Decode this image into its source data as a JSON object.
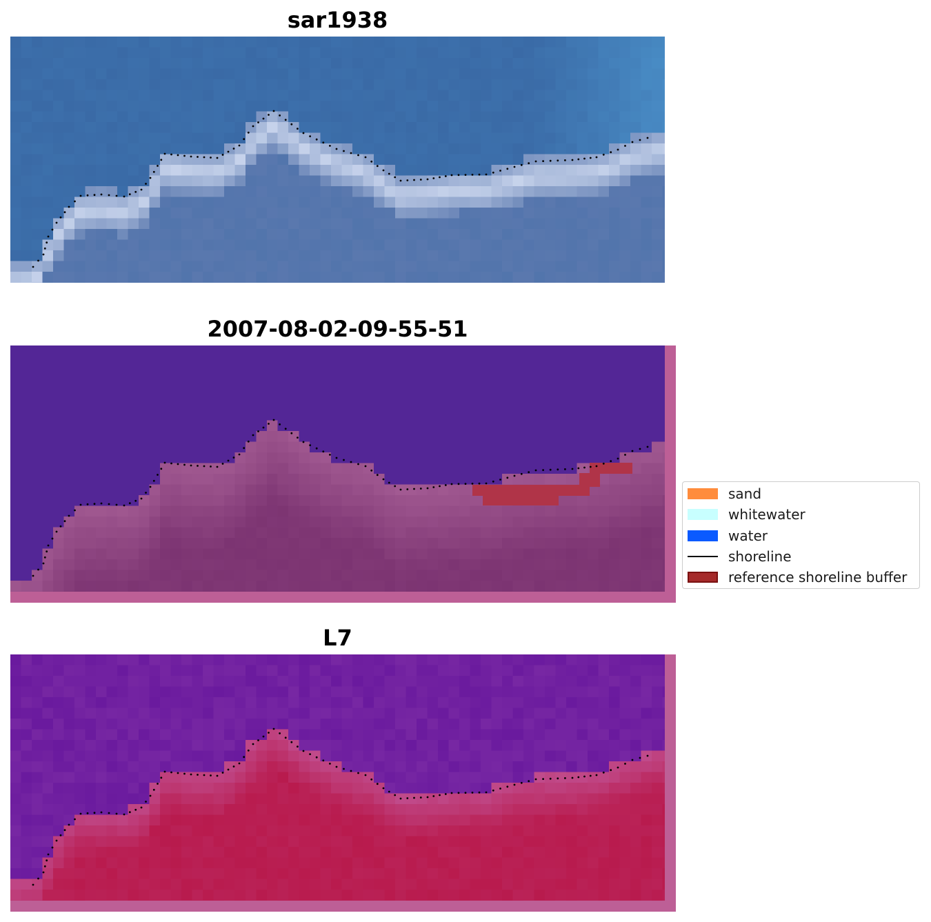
{
  "panels": [
    {
      "id": "rgb",
      "title": "sar1938",
      "style": "rgb",
      "border": false
    },
    {
      "id": "classes",
      "title": "2007-08-02-09-55-51",
      "style": "classes",
      "border": true
    },
    {
      "id": "index",
      "title": "L7",
      "style": "index",
      "border": true
    }
  ],
  "legend": {
    "items": [
      {
        "label": "sand",
        "kind": "patch",
        "color": "#ff8c3c"
      },
      {
        "label": "whitewater",
        "kind": "patch",
        "color": "#c8ffff"
      },
      {
        "label": "water",
        "kind": "patch",
        "color": "#0a5aff"
      },
      {
        "label": "shoreline",
        "kind": "line",
        "color": "#000000"
      },
      {
        "label": "reference shoreline buffer",
        "kind": "patch",
        "color": "#a52a2a",
        "edge": "#7a1010"
      }
    ]
  },
  "colors": {
    "rgb_sea_deep": "#3a6aa6",
    "rgb_sea_light": "#4a8fc8",
    "rgb_surf": "#c8d4ec",
    "rgb_land": "#5a78ae",
    "class_water": "#532696",
    "class_land": "#7a3270",
    "class_buffer": "#b03448",
    "index_water": "#6a1a9e",
    "index_land": "#b8184a",
    "border_pink": "#bd5f96",
    "shoreline": "#000000"
  }
}
